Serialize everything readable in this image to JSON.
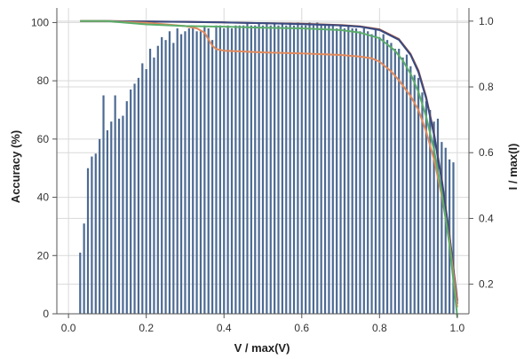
{
  "chart_data": {
    "type": "bar",
    "xlabel": "V / max(V)",
    "ylabel": "Accuracy (%)",
    "y2label": "I / max(I)",
    "xlim": [
      -0.03,
      1.03
    ],
    "ylim": [
      0,
      105
    ],
    "y2lim": [
      0.11,
      1.04
    ],
    "xticks": [
      0.0,
      0.2,
      0.4,
      0.6,
      0.8,
      1.0
    ],
    "xtick_labels": [
      "0.0",
      "0.2",
      "0.4",
      "0.6",
      "0.8",
      "1.0"
    ],
    "yticks": [
      0,
      20,
      40,
      60,
      80,
      100
    ],
    "ytick_labels": [
      "0",
      "20",
      "40",
      "60",
      "80",
      "100"
    ],
    "y2ticks": [
      0.2,
      0.4,
      0.6,
      0.8,
      1.0
    ],
    "y2tick_labels": [
      "0.2",
      "0.4",
      "0.6",
      "0.8",
      "1.0"
    ],
    "grid": true,
    "bars": {
      "color": "#4c6a93",
      "x": [
        0.03,
        0.04,
        0.05,
        0.06,
        0.07,
        0.08,
        0.09,
        0.1,
        0.11,
        0.12,
        0.13,
        0.14,
        0.15,
        0.16,
        0.17,
        0.18,
        0.19,
        0.2,
        0.21,
        0.22,
        0.23,
        0.24,
        0.25,
        0.26,
        0.27,
        0.28,
        0.29,
        0.3,
        0.31,
        0.32,
        0.33,
        0.34,
        0.35,
        0.36,
        0.37,
        0.38,
        0.39,
        0.4,
        0.41,
        0.42,
        0.43,
        0.44,
        0.45,
        0.46,
        0.47,
        0.48,
        0.49,
        0.5,
        0.51,
        0.52,
        0.53,
        0.54,
        0.55,
        0.56,
        0.57,
        0.58,
        0.59,
        0.6,
        0.61,
        0.62,
        0.63,
        0.64,
        0.65,
        0.66,
        0.67,
        0.68,
        0.69,
        0.7,
        0.71,
        0.72,
        0.73,
        0.74,
        0.75,
        0.76,
        0.77,
        0.78,
        0.79,
        0.8,
        0.81,
        0.82,
        0.83,
        0.84,
        0.85,
        0.86,
        0.87,
        0.88,
        0.89,
        0.9,
        0.91,
        0.92,
        0.93,
        0.94,
        0.95,
        0.96,
        0.97,
        0.98,
        0.99
      ],
      "values": [
        21,
        31,
        50,
        54,
        55,
        60,
        75,
        63,
        66,
        75,
        67,
        68,
        73,
        77,
        79,
        81,
        86,
        84,
        91,
        88,
        92,
        95,
        94,
        97,
        93,
        98,
        96,
        97,
        98,
        98,
        97,
        97,
        99,
        98,
        94,
        99,
        99,
        98,
        99,
        98,
        99,
        99,
        99,
        100,
        99,
        99,
        100,
        99,
        100,
        99,
        100,
        99,
        100,
        99,
        100,
        99,
        100,
        99,
        99,
        100,
        99,
        100,
        99,
        99,
        99,
        99,
        98,
        99,
        98,
        99,
        98,
        98,
        97,
        98,
        97,
        96,
        98,
        95,
        96,
        94,
        93,
        91,
        91,
        88,
        89,
        85,
        82,
        81,
        76,
        73,
        70,
        66,
        67,
        59,
        57,
        53,
        52
      ]
    },
    "series": [
      {
        "color": "#8e4a3a",
        "x": [
          0.03,
          0.1,
          0.2,
          0.3,
          0.35,
          0.4,
          0.5,
          0.6,
          0.7,
          0.75,
          0.8,
          0.85,
          0.88,
          0.9,
          0.92,
          0.94,
          0.96,
          0.98,
          1.0
        ],
        "values": [
          1.0,
          1.0,
          0.999,
          0.998,
          0.997,
          0.996,
          0.994,
          0.992,
          0.988,
          0.984,
          0.975,
          0.945,
          0.9,
          0.85,
          0.77,
          0.66,
          0.52,
          0.35,
          0.15
        ]
      },
      {
        "color": "#3a4a82",
        "x": [
          0.03,
          0.1,
          0.2,
          0.3,
          0.35,
          0.4,
          0.5,
          0.6,
          0.7,
          0.75,
          0.8,
          0.85,
          0.88,
          0.9,
          0.92,
          0.94,
          0.96,
          0.98,
          1.0
        ],
        "values": [
          1.0,
          1.0,
          0.999,
          0.998,
          0.997,
          0.996,
          0.994,
          0.991,
          0.987,
          0.983,
          0.973,
          0.943,
          0.897,
          0.845,
          0.765,
          0.655,
          0.515,
          0.345,
          0.14
        ]
      },
      {
        "color": "#e28a5c",
        "x": [
          0.03,
          0.1,
          0.2,
          0.25,
          0.3,
          0.33,
          0.35,
          0.36,
          0.37,
          0.38,
          0.4,
          0.5,
          0.6,
          0.7,
          0.75,
          0.78,
          0.8,
          0.83,
          0.85,
          0.88,
          0.9,
          0.92,
          0.94,
          0.96,
          0.98,
          1.0
        ],
        "values": [
          1.0,
          1.0,
          0.995,
          0.99,
          0.985,
          0.978,
          0.965,
          0.945,
          0.925,
          0.915,
          0.91,
          0.905,
          0.902,
          0.897,
          0.892,
          0.887,
          0.877,
          0.847,
          0.82,
          0.772,
          0.73,
          0.665,
          0.58,
          0.47,
          0.33,
          0.13
        ]
      },
      {
        "color": "#5aad6a",
        "x": [
          0.03,
          0.1,
          0.2,
          0.3,
          0.4,
          0.5,
          0.6,
          0.7,
          0.75,
          0.8,
          0.84,
          0.86,
          0.88,
          0.9,
          0.92,
          0.94,
          0.96,
          0.98,
          1.0
        ],
        "values": [
          1.0,
          1.0,
          0.99,
          0.985,
          0.983,
          0.98,
          0.978,
          0.973,
          0.965,
          0.948,
          0.91,
          0.88,
          0.84,
          0.785,
          0.71,
          0.61,
          0.48,
          0.32,
          0.1
        ]
      }
    ]
  }
}
